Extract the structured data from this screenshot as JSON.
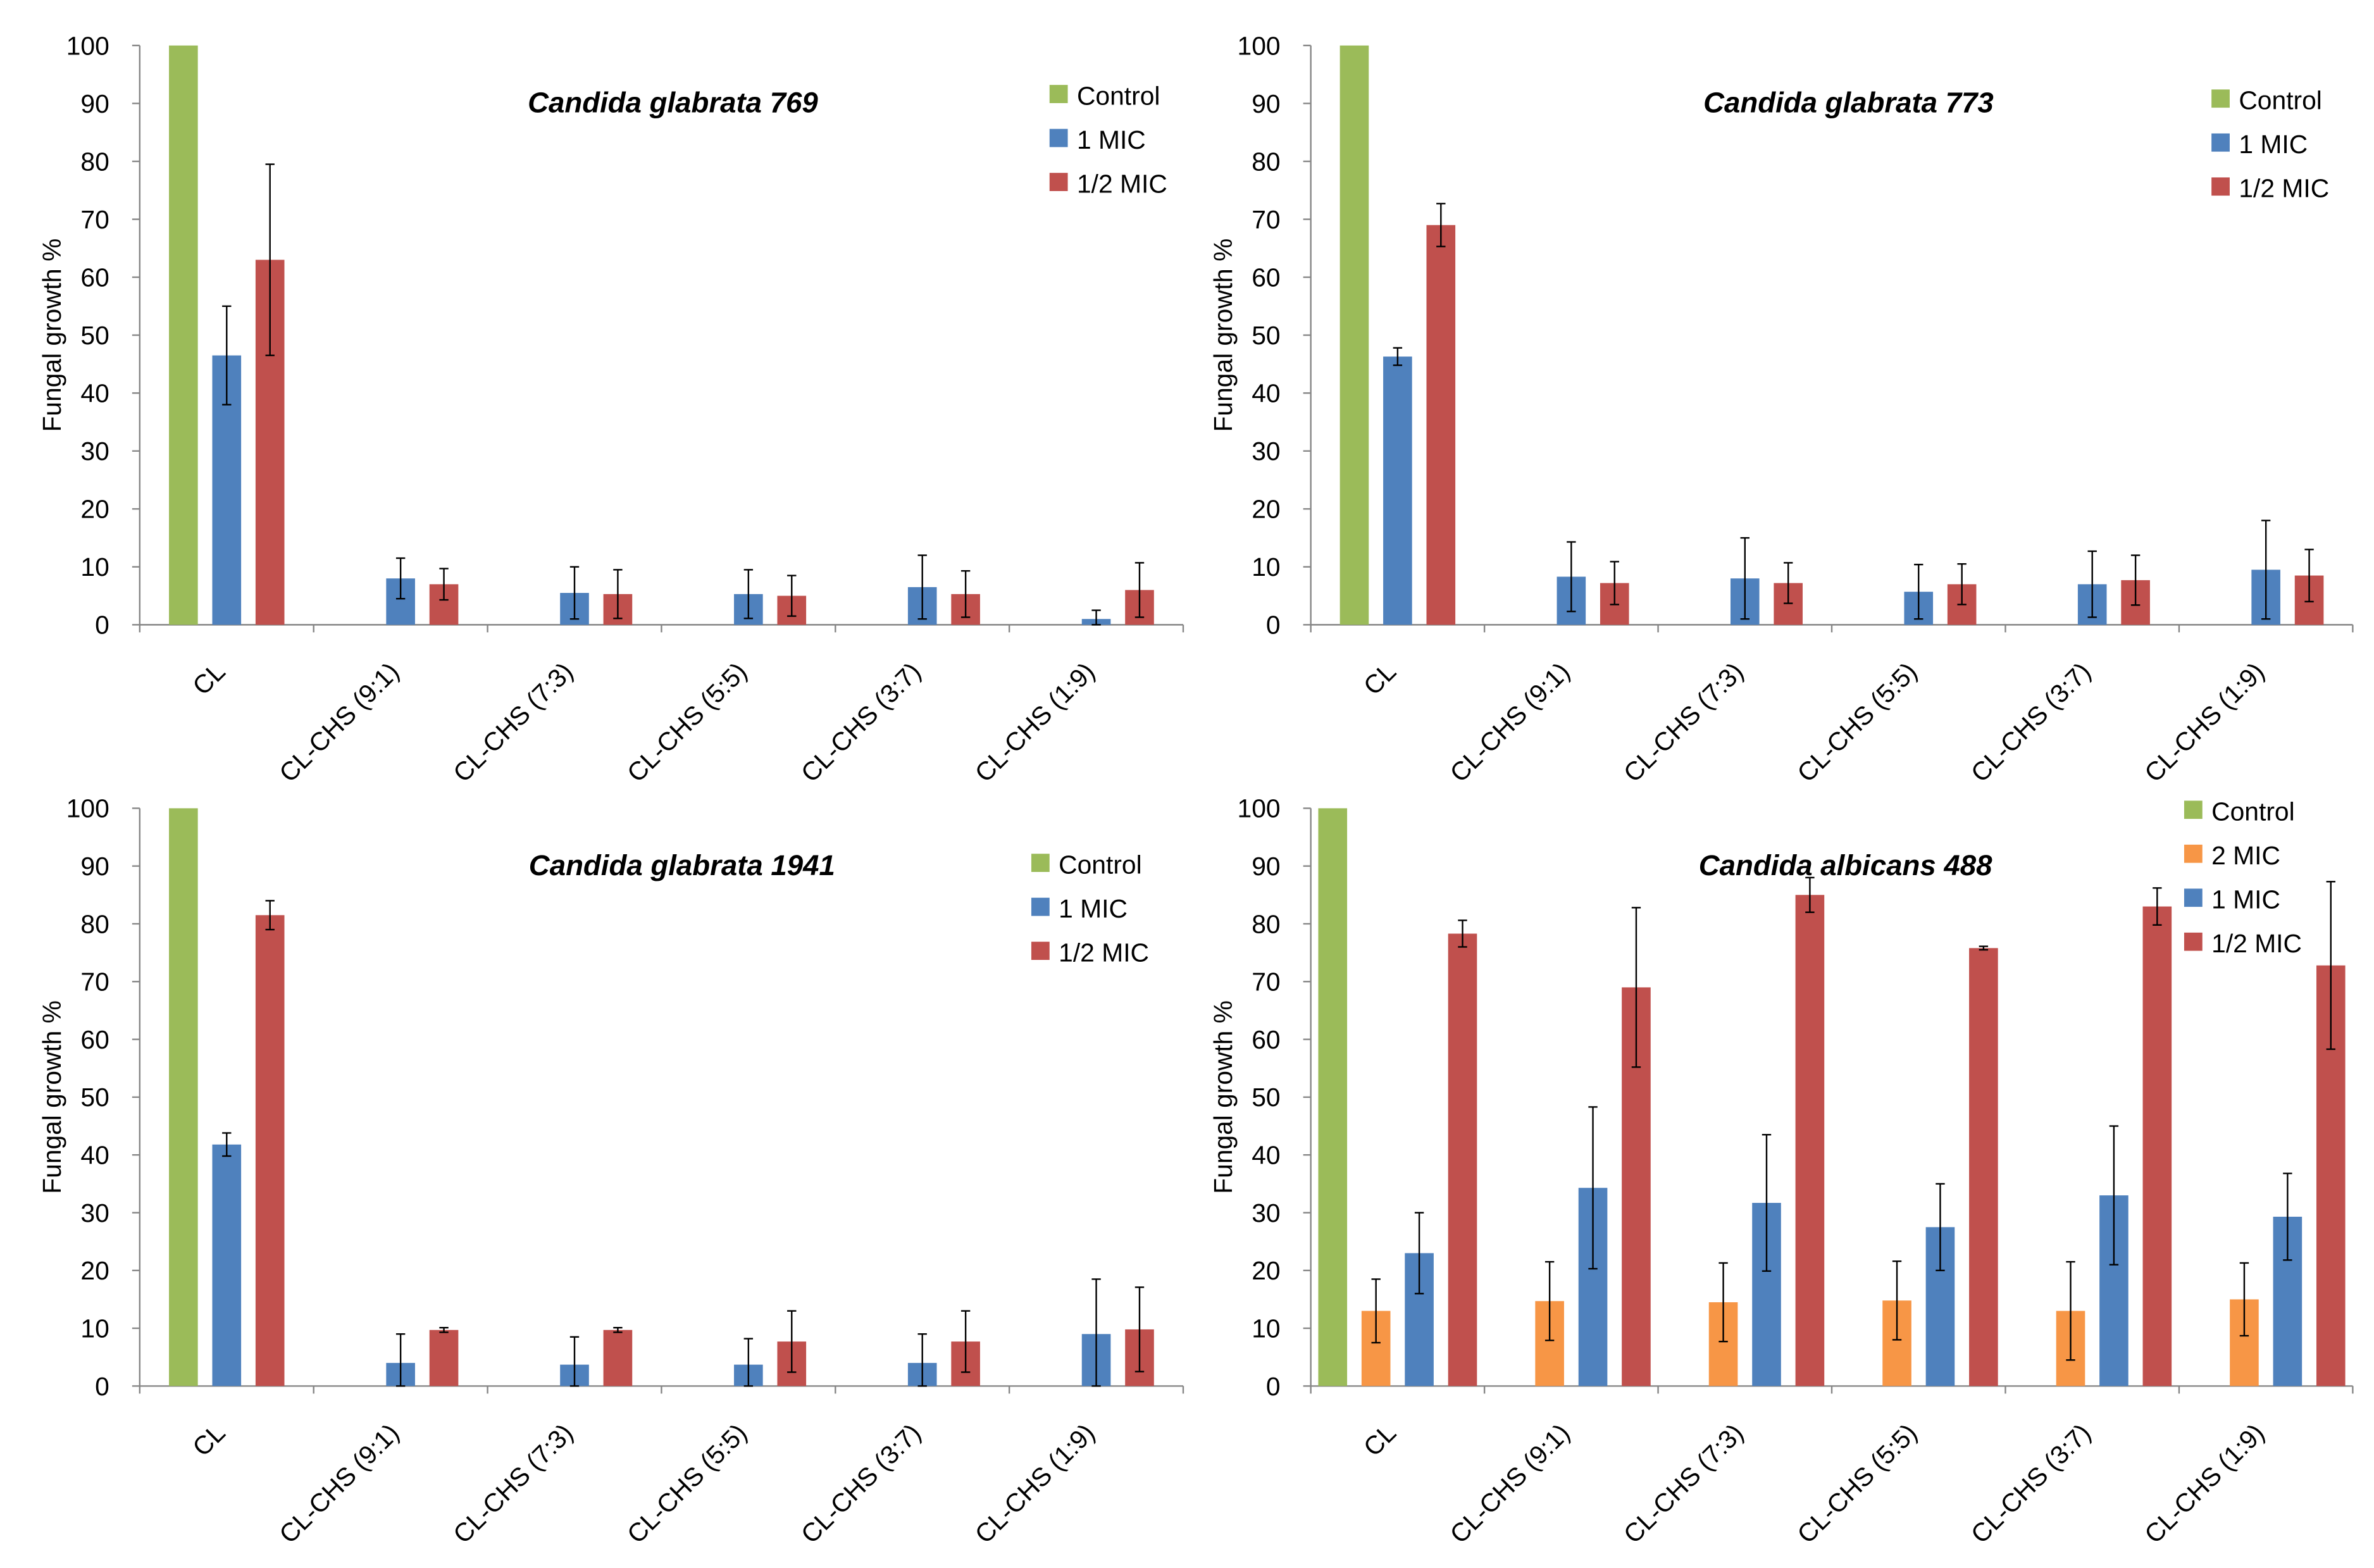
{
  "colors": {
    "Control": "#9BBB59",
    "2 MIC": "#F79646",
    "1 MIC": "#4F81BD",
    "1/2 MIC": "#C0504D"
  },
  "chart_data": [
    {
      "type": "bar",
      "title": "Candida glabrata 769",
      "ylabel": "Fungal growth %",
      "xlabel": "",
      "ylim": [
        0,
        100
      ],
      "yticks": [
        0,
        10,
        20,
        30,
        40,
        50,
        60,
        70,
        80,
        90,
        100
      ],
      "categories": [
        "CL",
        "CL-CHS (9:1)",
        "CL-CHS (7:3)",
        "CL-CHS (5:5)",
        "CL-CHS (3:7)",
        "CL-CHS (1:9)"
      ],
      "legend": "top-right",
      "series": [
        {
          "name": "Control",
          "values": [
            100,
            null,
            null,
            null,
            null,
            null
          ],
          "errors": [
            0,
            null,
            null,
            null,
            null,
            null
          ]
        },
        {
          "name": "1 MIC",
          "values": [
            46.5,
            8,
            5.5,
            5.3,
            6.5,
            1
          ],
          "errors": [
            8.5,
            3.5,
            4.5,
            4.2,
            5.5,
            1.5
          ]
        },
        {
          "name": "1/2 MIC",
          "values": [
            63,
            7,
            5.3,
            5,
            5.3,
            6
          ],
          "errors": [
            16.5,
            2.7,
            4.2,
            3.5,
            4,
            4.7
          ]
        }
      ]
    },
    {
      "type": "bar",
      "title": "Candida glabrata 773",
      "ylabel": "Fungal growth %",
      "xlabel": "",
      "ylim": [
        0,
        100
      ],
      "yticks": [
        0,
        10,
        20,
        30,
        40,
        50,
        60,
        70,
        80,
        90,
        100
      ],
      "categories": [
        "CL",
        "CL-CHS (9:1)",
        "CL-CHS (7:3)",
        "CL-CHS (5:5)",
        "CL-CHS (3:7)",
        "CL-CHS (1:9)"
      ],
      "legend": "top-right",
      "series": [
        {
          "name": "Control",
          "values": [
            100,
            null,
            null,
            null,
            null,
            null
          ],
          "errors": [
            0,
            null,
            null,
            null,
            null,
            null
          ]
        },
        {
          "name": "1 MIC",
          "values": [
            46.3,
            8.3,
            8,
            5.7,
            7,
            9.5
          ],
          "errors": [
            1.5,
            6,
            7,
            4.7,
            5.7,
            8.5
          ]
        },
        {
          "name": "1/2 MIC",
          "values": [
            69,
            7.2,
            7.2,
            7,
            7.7,
            8.5
          ],
          "errors": [
            3.7,
            3.7,
            3.5,
            3.5,
            4.3,
            4.5
          ]
        }
      ]
    },
    {
      "type": "bar",
      "title": "Candida glabrata 1941",
      "ylabel": "Fungal growth %",
      "xlabel": "",
      "ylim": [
        0,
        100
      ],
      "yticks": [
        0,
        10,
        20,
        30,
        40,
        50,
        60,
        70,
        80,
        90,
        100
      ],
      "categories": [
        "CL",
        "CL-CHS (9:1)",
        "CL-CHS (7:3)",
        "CL-CHS (5:5)",
        "CL-CHS (3:7)",
        "CL-CHS (1:9)"
      ],
      "legend": "top-right",
      "series": [
        {
          "name": "Control",
          "values": [
            100,
            null,
            null,
            null,
            null,
            null
          ],
          "errors": [
            0,
            null,
            null,
            null,
            null,
            null
          ]
        },
        {
          "name": "1 MIC",
          "values": [
            41.8,
            4,
            3.7,
            3.7,
            4,
            9
          ],
          "errors": [
            2,
            5,
            4.8,
            4.5,
            5,
            9.5
          ]
        },
        {
          "name": "1/2 MIC",
          "values": [
            81.5,
            9.7,
            9.7,
            7.7,
            7.7,
            9.8
          ],
          "errors": [
            2.5,
            0.4,
            0.4,
            5.3,
            5.3,
            7.3
          ]
        }
      ]
    },
    {
      "type": "bar",
      "title": "Candida albicans 488",
      "ylabel": "Fungal growth %",
      "xlabel": "",
      "ylim": [
        0,
        100
      ],
      "yticks": [
        0,
        10,
        20,
        30,
        40,
        50,
        60,
        70,
        80,
        90,
        100
      ],
      "categories": [
        "CL",
        "CL-CHS (9:1)",
        "CL-CHS (7:3)",
        "CL-CHS (5:5)",
        "CL-CHS (3:7)",
        "CL-CHS (1:9)"
      ],
      "legend": "top-right",
      "series": [
        {
          "name": "Control",
          "values": [
            100,
            null,
            null,
            null,
            null,
            null
          ],
          "errors": [
            0,
            null,
            null,
            null,
            null,
            null
          ]
        },
        {
          "name": "2 MIC",
          "values": [
            13,
            14.7,
            14.5,
            14.8,
            13,
            15
          ],
          "errors": [
            5.5,
            6.8,
            6.8,
            6.8,
            8.5,
            6.3
          ]
        },
        {
          "name": "1 MIC",
          "values": [
            23,
            34.3,
            31.7,
            27.5,
            33,
            29.3
          ],
          "errors": [
            7,
            14,
            11.8,
            7.5,
            12,
            7.5
          ]
        },
        {
          "name": "1/2 MIC",
          "values": [
            78.3,
            69,
            85,
            75.8,
            83,
            72.8
          ],
          "errors": [
            2.3,
            13.8,
            3,
            0.3,
            3.2,
            14.5
          ]
        }
      ]
    }
  ]
}
